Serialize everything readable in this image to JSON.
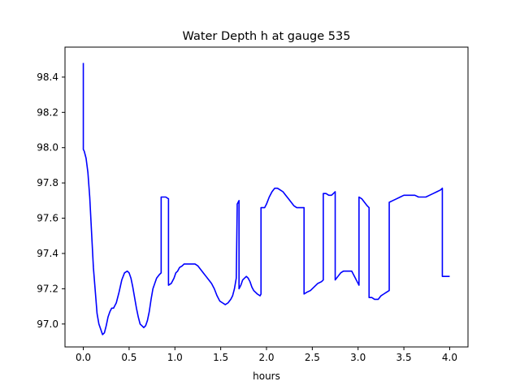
{
  "chart_data": {
    "type": "line",
    "title": "Water Depth h at gauge 535",
    "xlabel": "hours",
    "ylabel": "",
    "xlim": [
      -0.2,
      4.2
    ],
    "ylim": [
      96.87,
      98.57
    ],
    "xticks": [
      0.0,
      0.5,
      1.0,
      1.5,
      2.0,
      2.5,
      3.0,
      3.5,
      4.0
    ],
    "xtick_labels": [
      "0.0",
      "0.5",
      "1.0",
      "1.5",
      "2.0",
      "2.5",
      "3.0",
      "3.5",
      "4.0"
    ],
    "yticks": [
      97.0,
      97.2,
      97.4,
      97.6,
      97.8,
      98.0,
      98.2,
      98.4
    ],
    "ytick_labels": [
      "97.0",
      "97.2",
      "97.4",
      "97.6",
      "97.8",
      "98.0",
      "98.2",
      "98.4"
    ],
    "grid": false,
    "legend": "none",
    "series": [
      {
        "color": "#0000ff",
        "x": [
          0.0,
          0.0,
          0.01,
          0.03,
          0.05,
          0.07,
          0.09,
          0.11,
          0.13,
          0.15,
          0.17,
          0.19,
          0.21,
          0.23,
          0.25,
          0.27,
          0.29,
          0.31,
          0.33,
          0.36,
          0.39,
          0.42,
          0.45,
          0.48,
          0.5,
          0.52,
          0.54,
          0.56,
          0.58,
          0.6,
          0.62,
          0.64,
          0.66,
          0.68,
          0.7,
          0.72,
          0.74,
          0.76,
          0.78,
          0.8,
          0.83,
          0.85,
          0.85,
          0.87,
          0.9,
          0.93,
          0.93,
          0.96,
          0.99,
          1.01,
          1.03,
          1.05,
          1.08,
          1.1,
          1.13,
          1.16,
          1.19,
          1.22,
          1.25,
          1.28,
          1.31,
          1.34,
          1.37,
          1.4,
          1.43,
          1.46,
          1.49,
          1.52,
          1.55,
          1.58,
          1.61,
          1.63,
          1.65,
          1.67,
          1.68,
          1.68,
          1.69,
          1.7,
          1.7,
          1.72,
          1.74,
          1.76,
          1.78,
          1.8,
          1.82,
          1.84,
          1.86,
          1.88,
          1.9,
          1.93,
          1.94,
          1.94,
          1.96,
          1.98,
          2.0,
          2.03,
          2.06,
          2.09,
          2.12,
          2.15,
          2.18,
          2.21,
          2.24,
          2.27,
          2.3,
          2.33,
          2.36,
          2.39,
          2.41,
          2.41,
          2.44,
          2.48,
          2.52,
          2.56,
          2.6,
          2.62,
          2.62,
          2.65,
          2.68,
          2.71,
          2.73,
          2.75,
          2.75,
          2.78,
          2.81,
          2.84,
          2.87,
          2.9,
          2.93,
          2.96,
          2.99,
          3.01,
          3.01,
          3.04,
          3.07,
          3.1,
          3.12,
          3.12,
          3.15,
          3.18,
          3.2,
          3.22,
          3.25,
          3.28,
          3.31,
          3.34,
          3.34,
          3.38,
          3.42,
          3.46,
          3.5,
          3.54,
          3.58,
          3.62,
          3.66,
          3.7,
          3.74,
          3.78,
          3.82,
          3.86,
          3.9,
          3.92,
          3.92,
          3.94,
          3.96,
          3.98,
          4.0
        ],
        "y": [
          98.48,
          97.99,
          97.98,
          97.94,
          97.86,
          97.72,
          97.52,
          97.32,
          97.19,
          97.06,
          97.0,
          96.97,
          96.94,
          96.95,
          96.99,
          97.04,
          97.07,
          97.09,
          97.09,
          97.12,
          97.18,
          97.25,
          97.29,
          97.3,
          97.29,
          97.26,
          97.21,
          97.15,
          97.09,
          97.04,
          97.0,
          96.99,
          96.98,
          96.99,
          97.02,
          97.07,
          97.14,
          97.2,
          97.23,
          97.26,
          97.28,
          97.29,
          97.72,
          97.72,
          97.72,
          97.71,
          97.22,
          97.23,
          97.26,
          97.29,
          97.3,
          97.32,
          97.33,
          97.34,
          97.34,
          97.34,
          97.34,
          97.34,
          97.33,
          97.31,
          97.29,
          97.27,
          97.25,
          97.23,
          97.2,
          97.16,
          97.13,
          97.12,
          97.11,
          97.12,
          97.14,
          97.16,
          97.2,
          97.26,
          97.66,
          97.68,
          97.69,
          97.7,
          97.2,
          97.22,
          97.25,
          97.26,
          97.27,
          97.26,
          97.24,
          97.21,
          97.19,
          97.18,
          97.17,
          97.16,
          97.17,
          97.66,
          97.66,
          97.66,
          97.68,
          97.72,
          97.75,
          97.77,
          97.77,
          97.76,
          97.75,
          97.73,
          97.71,
          97.69,
          97.67,
          97.66,
          97.66,
          97.66,
          97.66,
          97.17,
          97.18,
          97.19,
          97.21,
          97.23,
          97.24,
          97.25,
          97.74,
          97.74,
          97.73,
          97.73,
          97.74,
          97.75,
          97.25,
          97.27,
          97.29,
          97.3,
          97.3,
          97.3,
          97.3,
          97.27,
          97.24,
          97.22,
          97.72,
          97.71,
          97.69,
          97.67,
          97.66,
          97.15,
          97.15,
          97.14,
          97.14,
          97.14,
          97.16,
          97.17,
          97.18,
          97.19,
          97.69,
          97.7,
          97.71,
          97.72,
          97.73,
          97.73,
          97.73,
          97.73,
          97.72,
          97.72,
          97.72,
          97.73,
          97.74,
          97.75,
          97.76,
          97.77,
          97.27,
          97.27,
          97.27,
          97.27,
          97.27
        ]
      }
    ]
  }
}
